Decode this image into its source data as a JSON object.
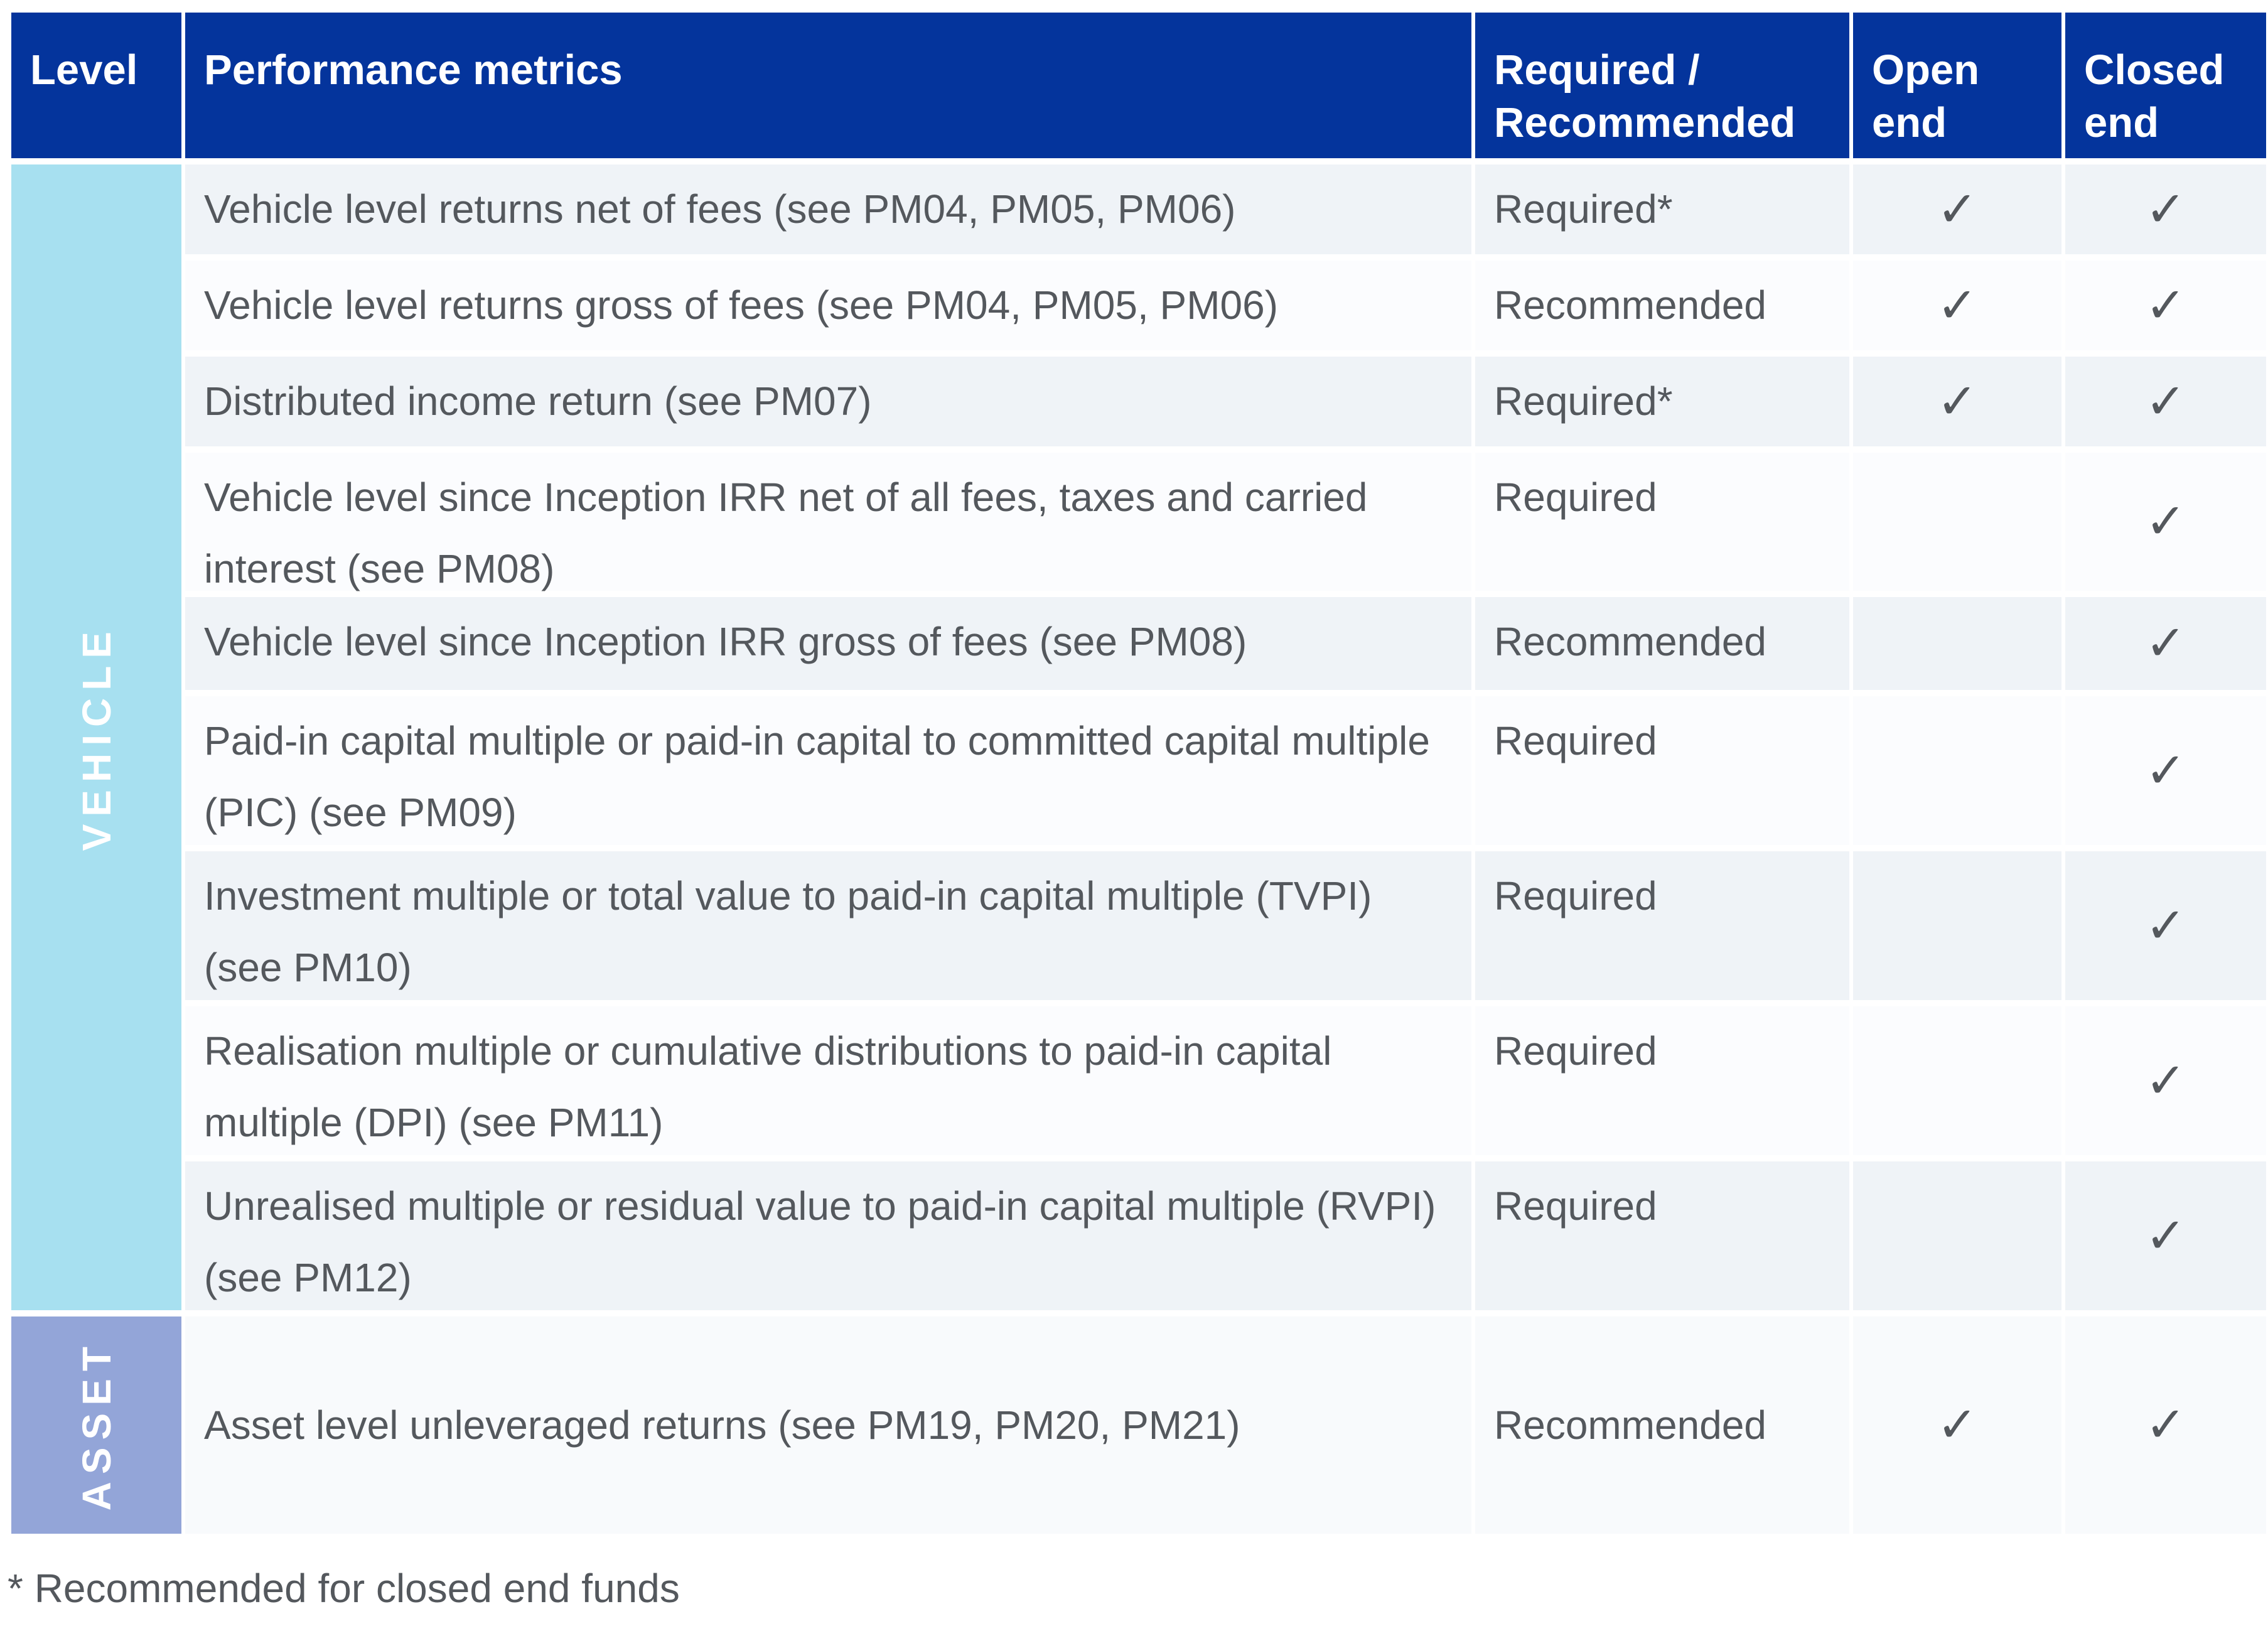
{
  "colors": {
    "header_bg": "#04349c",
    "header_text": "#ffffff",
    "vehicle_section_bg": "#a7e0f0",
    "asset_section_bg": "#93a5d8",
    "row_shaded_bg": "#eff3f7",
    "row_plain_bg": "#fbfcfe",
    "body_text": "#54585d"
  },
  "icons": {
    "check_icon": "✓"
  },
  "table": {
    "columns": [
      "Level",
      "Performance metrics",
      "Required / Recommended",
      "Open end",
      "Closed end"
    ],
    "sections": [
      {
        "level": "VEHICLE",
        "rows": [
          {
            "metric": "Vehicle level returns net of fees (see PM04, PM05, PM06)",
            "requirement": "Required*",
            "open_end": "✓",
            "closed_end": "✓"
          },
          {
            "metric": "Vehicle level returns gross of fees (see PM04, PM05, PM06)",
            "requirement": "Recommended",
            "open_end": "✓",
            "closed_end": "✓"
          },
          {
            "metric": "Distributed income return (see PM07)",
            "requirement": "Required*",
            "open_end": "✓",
            "closed_end": "✓"
          },
          {
            "metric": "Vehicle level since Inception IRR net of all fees, taxes and carried interest (see PM08)",
            "requirement": "Required",
            "open_end": "",
            "closed_end": "✓"
          },
          {
            "metric": "Vehicle level since Inception IRR gross of fees (see PM08)",
            "requirement": "Recommended",
            "open_end": "",
            "closed_end": "✓"
          },
          {
            "metric": "Paid-in capital multiple or paid-in capital to committed capital multiple (PIC) (see PM09)",
            "requirement": "Required",
            "open_end": "",
            "closed_end": "✓"
          },
          {
            "metric": "Investment multiple or total value to paid-in capital multiple (TVPI) (see PM10)",
            "requirement": "Required",
            "open_end": "",
            "closed_end": "✓"
          },
          {
            "metric": "Realisation multiple or cumulative distributions to paid-in capital multiple (DPI) (see PM11)",
            "requirement": "Required",
            "open_end": "",
            "closed_end": "✓"
          },
          {
            "metric": "Unrealised multiple or residual value to paid-in capital multiple (RVPI) (see PM12)",
            "requirement": "Required",
            "open_end": "",
            "closed_end": "✓"
          }
        ]
      },
      {
        "level": "ASSET",
        "rows": [
          {
            "metric": "Asset level unleveraged returns (see PM19, PM20, PM21)",
            "requirement": "Recommended",
            "open_end": "✓",
            "closed_end": "✓"
          }
        ]
      }
    ]
  },
  "footnote": "* Recommended for closed end funds"
}
